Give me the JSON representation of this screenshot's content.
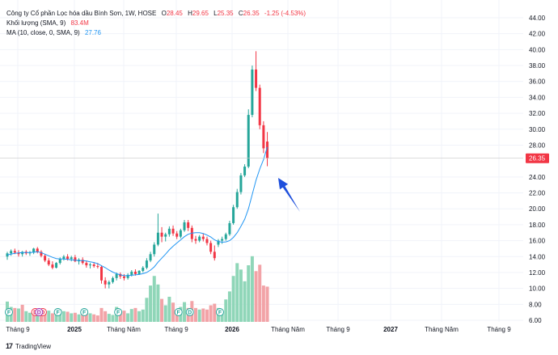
{
  "legend": {
    "title": "Công ty Cổ phần Lọc hóa dầu Bình Sơn, 1W, HOSE",
    "o_label": "O",
    "o_value": "28.45",
    "h_label": "H",
    "h_value": "29.65",
    "l_label": "L",
    "l_value": "25.35",
    "c_label": "C",
    "c_value": "26.35",
    "change": "-1.25 (-4.53%)",
    "volume_label": "Khối lượng (SMA, 9)",
    "volume_value": "83.4M",
    "ma_label": "MA (10, close, 0, SMA, 9)",
    "ma_value": "27.76"
  },
  "price_badge": "26.35",
  "footer": {
    "brand": "TradingView",
    "logo": "17"
  },
  "colors": {
    "up": "#26a69a",
    "down": "#f23645",
    "ma": "#2196f3",
    "arrow": "#1e4fdc",
    "vol_up": "#8fd6b8",
    "vol_down": "#f2a3a7"
  },
  "chart_data": {
    "type": "candlestick",
    "y_ticks": [
      "44.00",
      "42.00",
      "40.00",
      "38.00",
      "36.00",
      "34.00",
      "32.00",
      "30.00",
      "28.00",
      "24.00",
      "22.00",
      "20.00",
      "18.00",
      "16.00",
      "14.00",
      "12.00",
      "10.00",
      "8.00",
      "6.00"
    ],
    "ylim": [
      6,
      44
    ],
    "x_labels": [
      {
        "text": "Tháng 9",
        "bold": false
      },
      {
        "text": "2025",
        "bold": true
      },
      {
        "text": "Tháng Năm",
        "bold": false
      },
      {
        "text": "Tháng 9",
        "bold": false
      },
      {
        "text": "2026",
        "bold": true
      },
      {
        "text": "Tháng Năm",
        "bold": false
      },
      {
        "text": "Tháng 9",
        "bold": false
      },
      {
        "text": "2027",
        "bold": true
      },
      {
        "text": "Tháng Năm",
        "bold": false
      },
      {
        "text": "Tháng 9",
        "bold": false
      }
    ],
    "last_price": 26.35,
    "candles": [
      [
        14.0,
        14.6,
        13.6,
        14.4
      ],
      [
        14.4,
        14.9,
        14.1,
        14.7
      ],
      [
        14.7,
        15.0,
        14.3,
        14.5
      ],
      [
        14.5,
        14.8,
        14.0,
        14.3
      ],
      [
        14.3,
        14.7,
        14.0,
        14.6
      ],
      [
        14.6,
        14.8,
        14.2,
        14.4
      ],
      [
        14.4,
        14.7,
        14.1,
        14.5
      ],
      [
        14.5,
        15.1,
        14.3,
        15.0
      ],
      [
        15.0,
        15.2,
        14.4,
        14.6
      ],
      [
        14.6,
        14.8,
        13.9,
        14.1
      ],
      [
        14.1,
        14.3,
        13.3,
        13.5
      ],
      [
        13.5,
        13.8,
        12.8,
        13.0
      ],
      [
        13.0,
        13.4,
        12.4,
        12.6
      ],
      [
        12.6,
        13.3,
        12.5,
        13.2
      ],
      [
        13.2,
        13.9,
        13.0,
        13.7
      ],
      [
        13.7,
        14.2,
        13.5,
        14.0
      ],
      [
        14.0,
        14.3,
        13.5,
        13.7
      ],
      [
        13.7,
        14.1,
        13.4,
        13.9
      ],
      [
        13.9,
        14.2,
        13.3,
        13.4
      ],
      [
        13.4,
        13.8,
        13.0,
        13.6
      ],
      [
        13.6,
        13.9,
        13.0,
        13.2
      ],
      [
        13.2,
        13.5,
        12.6,
        12.9
      ],
      [
        12.9,
        13.2,
        12.5,
        13.0
      ],
      [
        13.0,
        13.3,
        12.6,
        12.8
      ],
      [
        12.8,
        13.2,
        12.5,
        12.7
      ],
      [
        12.7,
        12.9,
        10.6,
        11.0
      ],
      [
        11.0,
        11.4,
        10.0,
        10.5
      ],
      [
        10.5,
        11.0,
        10.0,
        10.8
      ],
      [
        10.8,
        11.5,
        10.6,
        11.3
      ],
      [
        11.3,
        12.0,
        11.0,
        11.8
      ],
      [
        11.8,
        12.0,
        11.2,
        11.5
      ],
      [
        11.5,
        11.8,
        11.0,
        11.3
      ],
      [
        11.3,
        11.9,
        11.1,
        11.7
      ],
      [
        11.7,
        12.3,
        11.5,
        12.1
      ],
      [
        12.1,
        12.4,
        11.6,
        11.8
      ],
      [
        11.8,
        12.3,
        11.7,
        12.2
      ],
      [
        12.2,
        12.8,
        12.0,
        12.6
      ],
      [
        12.6,
        13.8,
        12.4,
        13.5
      ],
      [
        13.5,
        14.6,
        13.3,
        14.3
      ],
      [
        14.3,
        15.8,
        14.0,
        15.5
      ],
      [
        15.5,
        19.4,
        15.3,
        17.0
      ],
      [
        17.0,
        17.7,
        15.8,
        16.5
      ],
      [
        16.5,
        17.0,
        15.9,
        16.8
      ],
      [
        16.8,
        17.8,
        16.5,
        17.5
      ],
      [
        17.5,
        17.9,
        16.6,
        16.9
      ],
      [
        16.9,
        17.2,
        16.2,
        16.5
      ],
      [
        16.5,
        17.5,
        16.3,
        17.3
      ],
      [
        17.3,
        18.6,
        17.1,
        18.3
      ],
      [
        18.3,
        18.6,
        17.2,
        17.6
      ],
      [
        17.6,
        17.9,
        15.8,
        16.2
      ],
      [
        16.2,
        16.6,
        15.6,
        16.0
      ],
      [
        16.0,
        16.7,
        15.8,
        16.5
      ],
      [
        16.5,
        16.9,
        15.9,
        16.2
      ],
      [
        16.2,
        16.5,
        15.4,
        15.7
      ],
      [
        15.7,
        16.0,
        14.3,
        14.6
      ],
      [
        14.6,
        15.4,
        13.5,
        13.8
      ],
      [
        15.5,
        16.2,
        15.2,
        16.0
      ],
      [
        16.0,
        16.5,
        15.6,
        16.2
      ],
      [
        16.2,
        17.0,
        16.0,
        16.8
      ],
      [
        16.8,
        18.5,
        16.6,
        18.2
      ],
      [
        18.2,
        20.5,
        18.0,
        20.2
      ],
      [
        20.2,
        22.5,
        20.0,
        22.1
      ],
      [
        22.1,
        24.5,
        21.8,
        24.2
      ],
      [
        24.2,
        25.6,
        24.0,
        25.3
      ],
      [
        25.3,
        32.5,
        25.1,
        31.8
      ],
      [
        31.8,
        38.0,
        31.5,
        37.5
      ],
      [
        37.5,
        39.8,
        34.8,
        35.2
      ],
      [
        35.2,
        35.6,
        30.0,
        30.5
      ],
      [
        30.5,
        31.0,
        27.0,
        27.6
      ],
      [
        28.45,
        29.65,
        25.35,
        26.35
      ]
    ],
    "volume": [
      [
        3.8,
        1
      ],
      [
        2.8,
        1
      ],
      [
        2.6,
        0
      ],
      [
        2.5,
        1
      ],
      [
        3.2,
        0
      ],
      [
        2.0,
        1
      ],
      [
        1.7,
        1
      ],
      [
        2.2,
        0
      ],
      [
        2.4,
        1
      ],
      [
        1.8,
        0
      ],
      [
        1.9,
        0
      ],
      [
        2.1,
        1
      ],
      [
        1.6,
        0
      ],
      [
        1.5,
        1
      ],
      [
        2.3,
        1
      ],
      [
        2.0,
        1
      ],
      [
        1.9,
        0
      ],
      [
        1.6,
        1
      ],
      [
        1.7,
        0
      ],
      [
        1.4,
        1
      ],
      [
        1.5,
        0
      ],
      [
        2.1,
        0
      ],
      [
        1.6,
        1
      ],
      [
        1.4,
        0
      ],
      [
        1.2,
        0
      ],
      [
        2.6,
        0
      ],
      [
        2.0,
        0
      ],
      [
        1.5,
        1
      ],
      [
        1.3,
        1
      ],
      [
        2.8,
        1
      ],
      [
        1.7,
        0
      ],
      [
        2.1,
        0
      ],
      [
        1.6,
        1
      ],
      [
        2.4,
        1
      ],
      [
        2.6,
        0
      ],
      [
        2.0,
        1
      ],
      [
        2.3,
        1
      ],
      [
        4.5,
        1
      ],
      [
        6.8,
        1
      ],
      [
        8.6,
        1
      ],
      [
        7.0,
        1
      ],
      [
        4.3,
        0
      ],
      [
        3.1,
        1
      ],
      [
        4.7,
        1
      ],
      [
        3.6,
        0
      ],
      [
        2.2,
        0
      ],
      [
        2.8,
        1
      ],
      [
        3.7,
        1
      ],
      [
        2.6,
        0
      ],
      [
        3.9,
        0
      ],
      [
        2.6,
        0
      ],
      [
        2.3,
        1
      ],
      [
        2.5,
        0
      ],
      [
        2.3,
        0
      ],
      [
        3.1,
        0
      ],
      [
        3.4,
        0
      ],
      [
        2.6,
        1
      ],
      [
        2.1,
        1
      ],
      [
        4.2,
        1
      ],
      [
        5.7,
        1
      ],
      [
        8.6,
        1
      ],
      [
        11.0,
        1
      ],
      [
        9.8,
        1
      ],
      [
        7.6,
        1
      ],
      [
        10.6,
        1
      ],
      [
        12.3,
        1
      ],
      [
        9.5,
        0
      ],
      [
        10.7,
        0
      ],
      [
        6.8,
        0
      ],
      [
        6.6,
        0
      ]
    ],
    "ma": [
      14.2,
      14.3,
      14.4,
      14.45,
      14.5,
      14.5,
      14.5,
      14.55,
      14.6,
      14.5,
      14.3,
      14.1,
      13.9,
      13.75,
      13.7,
      13.7,
      13.65,
      13.6,
      13.55,
      13.5,
      13.5,
      13.45,
      13.35,
      13.25,
      13.1,
      12.85,
      12.6,
      12.3,
      12.05,
      11.85,
      11.7,
      11.6,
      11.6,
      11.65,
      11.7,
      11.75,
      11.85,
      12.0,
      12.3,
      12.7,
      13.3,
      13.8,
      14.3,
      14.85,
      15.3,
      15.7,
      16.1,
      16.5,
      16.8,
      16.95,
      17.0,
      17.0,
      16.9,
      16.7,
      16.45,
      16.1,
      15.9,
      15.8,
      15.85,
      16.0,
      16.4,
      17.0,
      17.8,
      18.7,
      20.0,
      21.8,
      23.6,
      25.0,
      26.2,
      27.76
    ],
    "events": [
      {
        "i": 0,
        "letter": "F",
        "kind": "green"
      },
      {
        "i": 7,
        "letter": "D",
        "kind": "red"
      },
      {
        "i": 9,
        "letter": "D",
        "kind": "red"
      },
      {
        "i": 8,
        "letter": "D",
        "kind": "purple"
      },
      {
        "i": 13,
        "letter": "F",
        "kind": "green"
      },
      {
        "i": 20,
        "letter": "F",
        "kind": "green"
      },
      {
        "i": 29,
        "letter": "F",
        "kind": "green"
      },
      {
        "i": 45,
        "letter": "F",
        "kind": "green"
      },
      {
        "i": 48,
        "letter": "D",
        "kind": "green"
      },
      {
        "i": 56,
        "letter": "F",
        "kind": "green"
      }
    ]
  }
}
